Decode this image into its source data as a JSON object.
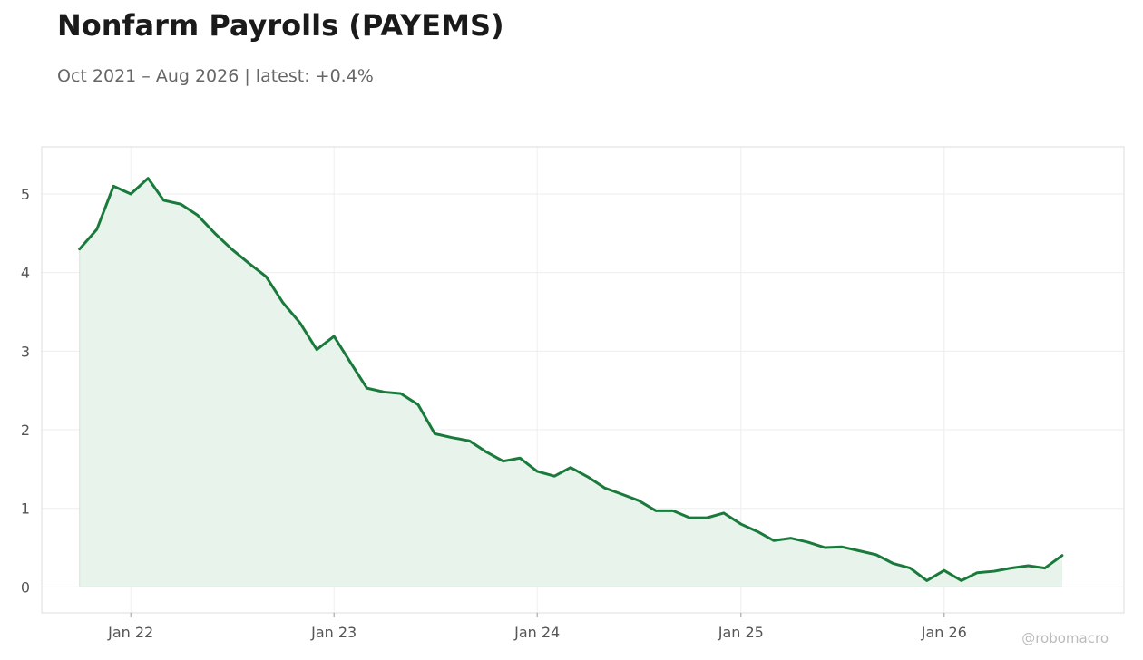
{
  "title": "Nonfarm Payrolls (PAYEMS)",
  "subtitle": "Oct 2021 – Aug 2026 | latest: +0.4%",
  "watermark": "@robomacro",
  "colors": {
    "line": "#1a7a3c",
    "fill": "#e8f3ec",
    "grid": "#eeeeee",
    "frame": "#dddddd"
  },
  "chart_data": {
    "type": "area",
    "title": "Nonfarm Payrolls (PAYEMS)",
    "xlabel": "",
    "ylabel": "",
    "ylim": [
      -0.33,
      5.6
    ],
    "xlim": [
      "2021-07-25",
      "2026-11-20"
    ],
    "grid": true,
    "legend": "none",
    "yticks": [
      0,
      1,
      2,
      3,
      4,
      5
    ],
    "xticks": [
      {
        "date": "2022-01-01",
        "label": "Jan 22"
      },
      {
        "date": "2023-01-01",
        "label": "Jan 23"
      },
      {
        "date": "2024-01-01",
        "label": "Jan 24"
      },
      {
        "date": "2025-01-01",
        "label": "Jan 25"
      },
      {
        "date": "2026-01-01",
        "label": "Jan 26"
      }
    ],
    "series": [
      {
        "x": [
          "2021-10-01",
          "2021-11-01",
          "2021-12-01",
          "2022-01-01",
          "2022-02-01",
          "2022-03-01",
          "2022-04-01",
          "2022-05-01",
          "2022-06-01",
          "2022-07-01",
          "2022-08-01",
          "2022-09-01",
          "2022-10-01",
          "2022-11-01",
          "2022-12-01",
          "2023-01-01",
          "2023-02-01",
          "2023-03-01",
          "2023-04-01",
          "2023-05-01",
          "2023-06-01",
          "2023-07-01",
          "2023-08-01",
          "2023-09-01",
          "2023-10-01",
          "2023-11-01",
          "2023-12-01",
          "2024-01-01",
          "2024-02-01",
          "2024-03-01",
          "2024-04-01",
          "2024-05-01",
          "2024-06-01",
          "2024-07-01",
          "2024-08-01",
          "2024-09-01",
          "2024-10-01",
          "2024-11-01",
          "2024-12-01",
          "2025-01-01",
          "2025-02-01",
          "2025-03-01",
          "2025-04-01",
          "2025-05-01",
          "2025-06-01",
          "2025-07-01",
          "2025-08-01",
          "2025-09-01",
          "2025-10-01",
          "2025-11-01",
          "2025-12-01",
          "2026-01-01",
          "2026-02-01",
          "2026-03-01",
          "2026-04-01",
          "2026-05-01",
          "2026-06-01",
          "2026-07-01",
          "2026-08-01"
        ],
        "values": [
          4.3,
          4.55,
          5.1,
          5.0,
          5.2,
          4.92,
          4.87,
          4.73,
          4.5,
          4.3,
          4.12,
          3.95,
          3.62,
          3.36,
          3.02,
          3.19,
          2.84,
          2.53,
          2.48,
          2.46,
          2.32,
          1.95,
          1.9,
          1.86,
          1.72,
          1.6,
          1.64,
          1.47,
          1.41,
          1.52,
          1.4,
          1.26,
          1.18,
          1.1,
          0.97,
          0.97,
          0.88,
          0.88,
          0.94,
          0.8,
          0.7,
          0.59,
          0.62,
          0.57,
          0.5,
          0.51,
          0.46,
          0.41,
          0.3,
          0.24,
          0.08,
          0.21,
          0.08,
          0.18,
          0.2,
          0.24,
          0.27,
          0.24,
          0.4
        ]
      }
    ]
  }
}
